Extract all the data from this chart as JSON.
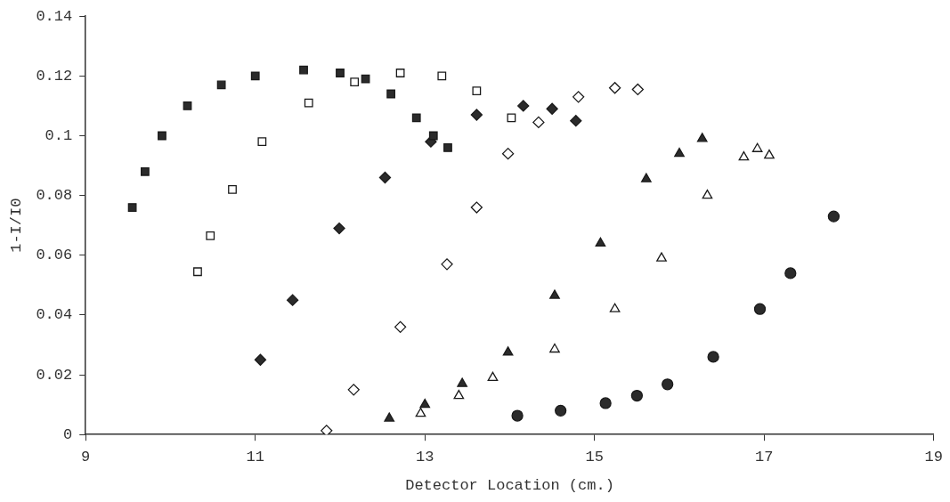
{
  "chart_data": {
    "type": "scatter",
    "xlabel": "Detector Location (cm.)",
    "ylabel": "1-I/I0",
    "xlim": [
      9,
      19
    ],
    "xticks": [
      9,
      11,
      13,
      15,
      17,
      19
    ],
    "ylim": [
      0,
      0.14
    ],
    "yticks": [
      0,
      0.02,
      0.04,
      0.06,
      0.08,
      0.1,
      0.12,
      0.14
    ],
    "grid": false,
    "legend": false,
    "series": [
      {
        "color": "#2b2b2b",
        "marker": "square",
        "x": [
          9.55,
          9.7,
          9.9,
          10.2,
          10.6,
          11.0,
          11.57,
          12.0,
          12.3,
          12.6,
          12.9,
          13.1,
          13.27
        ],
        "values": [
          0.076,
          0.088,
          0.1,
          0.11,
          0.117,
          0.12,
          0.122,
          0.121,
          0.119,
          0.114,
          0.106,
          0.1,
          0.096
        ]
      },
      {
        "color": "#ffffff",
        "marker": "square",
        "x": [
          10.32,
          10.47,
          10.73,
          11.08,
          11.63,
          12.17,
          12.71,
          13.2,
          13.61,
          14.02
        ],
        "values": [
          0.0545,
          0.0665,
          0.082,
          0.098,
          0.111,
          0.118,
          0.121,
          0.12,
          0.115,
          0.106
        ]
      },
      {
        "color": "#2b2b2b",
        "marker": "diamond",
        "x": [
          11.06,
          11.44,
          11.99,
          12.53,
          13.07,
          13.61,
          14.16,
          14.5,
          14.78
        ],
        "values": [
          0.025,
          0.045,
          0.069,
          0.086,
          0.098,
          0.107,
          0.11,
          0.109,
          0.105
        ]
      },
      {
        "color": "#ffffff",
        "marker": "diamond",
        "x": [
          11.84,
          12.16,
          12.71,
          13.26,
          13.61,
          13.98,
          14.34,
          14.81,
          15.24,
          15.51
        ],
        "values": [
          0.0013,
          0.015,
          0.036,
          0.057,
          0.076,
          0.094,
          0.1045,
          0.113,
          0.116,
          0.1155
        ]
      },
      {
        "color": "#2b2b2b",
        "marker": "triangle",
        "x": [
          12.58,
          13.0,
          13.44,
          13.98,
          14.53,
          15.07,
          15.61,
          16.0,
          16.27
        ],
        "values": [
          0.0054,
          0.01,
          0.017,
          0.0275,
          0.0465,
          0.064,
          0.0855,
          0.094,
          0.099
        ]
      },
      {
        "color": "#ffffff",
        "marker": "triangle",
        "x": [
          12.95,
          13.4,
          13.8,
          14.53,
          15.24,
          15.79,
          16.33,
          16.76,
          16.92,
          17.06
        ],
        "values": [
          0.007,
          0.013,
          0.019,
          0.0285,
          0.042,
          0.059,
          0.08,
          0.0928,
          0.0956,
          0.0934
        ]
      },
      {
        "color": "#2b2b2b",
        "marker": "circle",
        "x": [
          14.09,
          14.6,
          15.13,
          15.5,
          15.86,
          16.4,
          16.95,
          17.31,
          17.82
        ],
        "values": [
          0.0063,
          0.008,
          0.0105,
          0.013,
          0.0168,
          0.026,
          0.042,
          0.054,
          0.073
        ]
      }
    ]
  }
}
